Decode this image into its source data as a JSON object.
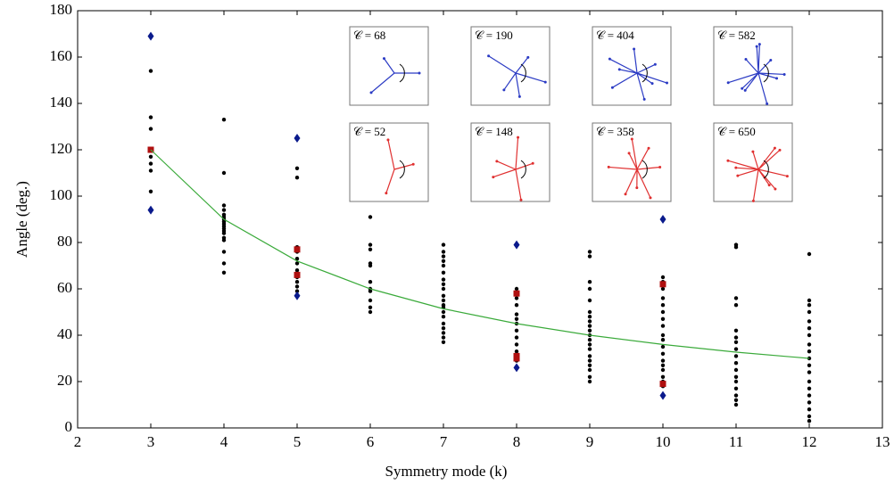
{
  "chart_data": {
    "type": "scatter",
    "xlabel": "Symmetry mode (k)",
    "ylabel": "Angle (deg.)",
    "xlim": [
      2,
      13
    ],
    "ylim": [
      0,
      180
    ],
    "xticks": [
      2,
      3,
      4,
      5,
      6,
      7,
      8,
      9,
      10,
      11,
      12,
      13
    ],
    "yticks": [
      0,
      20,
      40,
      60,
      80,
      100,
      120,
      140,
      160,
      180
    ],
    "annotations": [
      "𝒞 = 68",
      "𝒞 = 190",
      "𝒞 = 404",
      "𝒞 = 582",
      "𝒞 = 52",
      "𝒞 = 148",
      "𝒞 = 358",
      "𝒞 = 650"
    ],
    "series": [
      {
        "marker": "dot",
        "color": "#000000",
        "x": [
          3,
          3,
          3,
          3,
          3,
          3,
          3,
          3,
          4,
          4,
          4,
          4,
          4,
          4,
          4,
          4,
          4,
          4,
          4,
          4,
          4,
          4,
          4,
          4,
          4,
          4,
          5,
          5,
          5,
          5,
          5,
          5,
          5,
          5,
          5,
          5,
          5,
          6,
          6,
          6,
          6,
          6,
          6,
          6,
          6,
          6,
          6,
          6,
          7,
          7,
          7,
          7,
          7,
          7,
          7,
          7,
          7,
          7,
          7,
          7,
          7,
          7,
          7,
          7,
          7,
          7,
          7,
          7,
          8,
          8,
          8,
          8,
          8,
          8,
          8,
          8,
          8,
          8,
          8,
          8,
          8,
          9,
          9,
          9,
          9,
          9,
          9,
          9,
          9,
          9,
          9,
          9,
          9,
          9,
          9,
          9,
          9,
          9,
          9,
          9,
          9,
          10,
          10,
          10,
          10,
          10,
          10,
          10,
          10,
          10,
          10,
          10,
          10,
          10,
          10,
          10,
          10,
          10,
          10,
          11,
          11,
          11,
          11,
          11,
          11,
          11,
          11,
          11,
          11,
          11,
          11,
          11,
          11,
          11,
          11,
          11,
          12,
          12,
          12,
          12,
          12,
          12,
          12,
          12,
          12,
          12,
          12,
          12,
          12,
          12,
          12,
          12,
          12,
          12,
          12
        ],
        "values": [
          154,
          134,
          129,
          120,
          117,
          114,
          111,
          102,
          133,
          110,
          96,
          94,
          92,
          91,
          90,
          89,
          88,
          87,
          86,
          85,
          84,
          82,
          81,
          76,
          71,
          67,
          112,
          108,
          78,
          76,
          73,
          71,
          68,
          65,
          63,
          61,
          59,
          91,
          79,
          77,
          71,
          70,
          63,
          60,
          59,
          55,
          52,
          50,
          79,
          76,
          74,
          72,
          70,
          67,
          64,
          62,
          60,
          57,
          55,
          53,
          52,
          50,
          48,
          45,
          43,
          41,
          39,
          37,
          60,
          58,
          56,
          53,
          49,
          47,
          45,
          42,
          39,
          36,
          33,
          31,
          29,
          76,
          74,
          63,
          60,
          55,
          50,
          48,
          46,
          44,
          42,
          40,
          38,
          36,
          34,
          31,
          29,
          27,
          25,
          22,
          20,
          65,
          63,
          60,
          56,
          53,
          50,
          47,
          44,
          40,
          38,
          35,
          32,
          29,
          27,
          25,
          22,
          20,
          18,
          79,
          78,
          56,
          53,
          42,
          39,
          37,
          34,
          31,
          28,
          25,
          22,
          20,
          17,
          14,
          12,
          10,
          75,
          55,
          53,
          50,
          46,
          43,
          40,
          36,
          33,
          30,
          27,
          24,
          20,
          17,
          14,
          11,
          8,
          5,
          3
        ]
      },
      {
        "marker": "square",
        "color": "#b01010",
        "x": [
          3,
          5,
          5,
          8,
          8,
          8,
          10,
          10
        ],
        "values": [
          120,
          77,
          66,
          58,
          31,
          30,
          62,
          19
        ]
      },
      {
        "marker": "diamond",
        "color": "#0a1a8c",
        "x": [
          3,
          3,
          5,
          5,
          8,
          8,
          10,
          10
        ],
        "values": [
          169,
          94,
          125,
          57,
          79,
          26,
          90,
          14
        ]
      },
      {
        "marker": "line",
        "color": "#3aaa3a",
        "x": [
          3,
          4,
          5,
          6,
          7,
          8,
          9,
          10,
          11,
          12
        ],
        "values": [
          120,
          90,
          72,
          60,
          51.4,
          45,
          40,
          36,
          32.7,
          30
        ]
      }
    ]
  }
}
